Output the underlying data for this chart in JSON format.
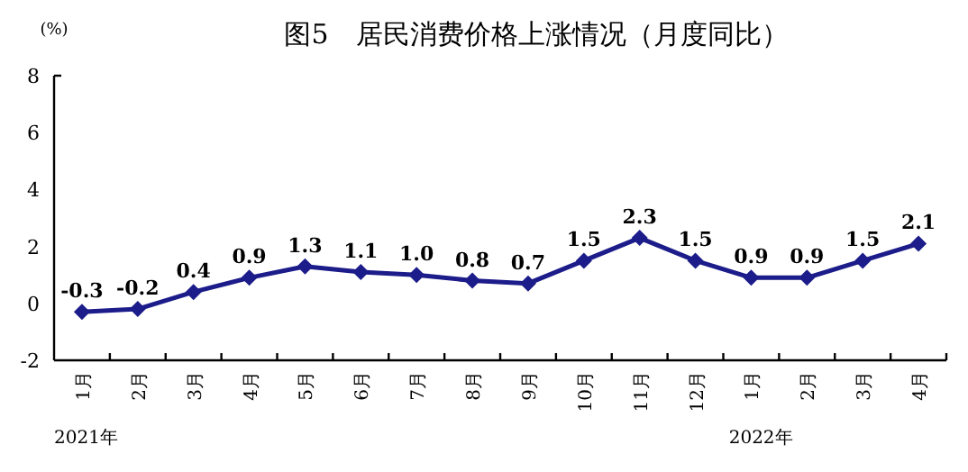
{
  "chart_data": {
    "type": "line",
    "title": "图5　居民消费价格上涨情况（月度同比）",
    "ylabel": "(%)",
    "categories": [
      "1月",
      "2月",
      "3月",
      "4月",
      "5月",
      "6月",
      "7月",
      "8月",
      "9月",
      "10月",
      "11月",
      "12月",
      "1月",
      "2月",
      "3月",
      "4月"
    ],
    "series": [
      {
        "color": "#1c1c8a",
        "values": [
          -0.3,
          -0.2,
          0.4,
          0.9,
          1.3,
          1.1,
          1.0,
          0.8,
          0.7,
          1.5,
          2.3,
          1.5,
          0.9,
          0.9,
          1.5,
          2.1
        ],
        "value_labels": [
          "-0.3",
          "-0.2",
          "0.4",
          "0.9",
          "1.3",
          "1.1",
          "1.0",
          "0.8",
          "0.7",
          "1.5",
          "2.3",
          "1.5",
          "0.9",
          "0.9",
          "1.5",
          "2.1"
        ]
      }
    ],
    "ylim": [
      -2,
      8
    ],
    "yticks": [
      -2,
      0,
      2,
      4,
      6,
      8
    ],
    "marker": "diamond",
    "grid": false,
    "annotations": [
      "2021年",
      "2022年"
    ]
  }
}
